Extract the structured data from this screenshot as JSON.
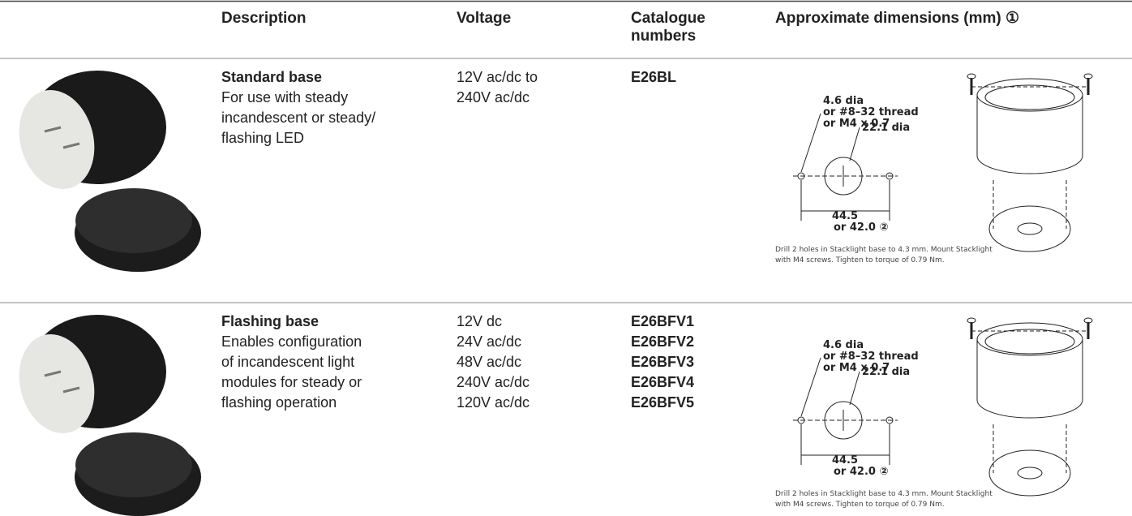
{
  "header": {
    "columns": [
      "Description",
      "Voltage",
      "Catalogue numbers",
      "Approximate dimensions (mm) ①"
    ]
  },
  "rows": [
    {
      "title": "Standard base",
      "description": [
        "For use with steady",
        "incandescent or steady/",
        "flashing LED"
      ],
      "voltages": [
        "12V ac/dc to",
        "240V ac/dc"
      ],
      "catalogue_numbers": [
        "E26BL"
      ],
      "diagram": {
        "hole_label": [
          "4.6 dia",
          "or #8–32 thread",
          "or M4 x 0.7"
        ],
        "center_label": "22.1 dia",
        "spacing_label": [
          "44.5",
          "or 42.0 ②"
        ]
      },
      "caption": [
        "Drill 2 holes in Stacklight base to 4.3 mm. Mount Stacklight",
        "with M4 screws. Tighten to torque of 0.79 Nm."
      ]
    },
    {
      "title": "Flashing base",
      "description": [
        "Enables configuration",
        "of incandescent light",
        "modules for steady or",
        "flashing operation"
      ],
      "voltages": [
        "12V dc",
        "24V ac/dc",
        "48V ac/dc",
        "240V ac/dc",
        "120V ac/dc"
      ],
      "catalogue_numbers": [
        "E26BFV1",
        "E26BFV2",
        "E26BFV3",
        "E26BFV4",
        "E26BFV5"
      ],
      "diagram": {
        "hole_label": [
          "4.6 dia",
          "or #8–32 thread",
          "or M4 x 0.7"
        ],
        "center_label": "22.1 dia",
        "spacing_label": [
          "44.5",
          "or 42.0 ②"
        ]
      },
      "caption": [
        "Drill 2 holes in Stacklight base to 4.3 mm. Mount Stacklight",
        "with M4 screws. Tighten to torque of 0.79 Nm."
      ]
    }
  ]
}
